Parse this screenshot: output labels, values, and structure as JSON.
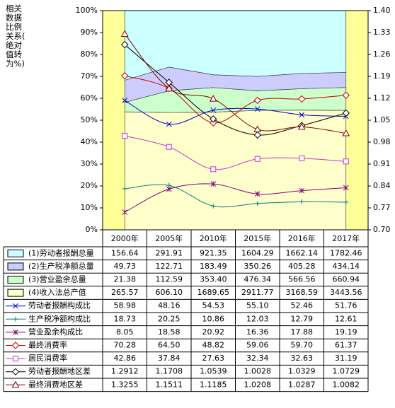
{
  "chart_data": {
    "type": "combo",
    "stacking": "percent",
    "y_label": "相关数据比例关系(绝对值转为%)",
    "categories": [
      "2000年",
      "2005年",
      "2010年",
      "2015年",
      "2016年",
      "2017年"
    ],
    "ylim": [
      0,
      100
    ],
    "yticks": [
      {
        "value": 0,
        "label": "0%"
      },
      {
        "value": 10,
        "label": "10%"
      },
      {
        "value": 20,
        "label": "20%"
      },
      {
        "value": 30,
        "label": "30%"
      },
      {
        "value": 40,
        "label": "40%"
      },
      {
        "value": 50,
        "label": "50%"
      },
      {
        "value": 60,
        "label": "60%"
      },
      {
        "value": 70,
        "label": "70%"
      },
      {
        "value": 80,
        "label": "80%"
      },
      {
        "value": 90,
        "label": "90%"
      },
      {
        "value": 100,
        "label": "100%"
      }
    ],
    "y2lim": [
      0.7,
      1.4
    ],
    "y2ticks": [
      {
        "value": 0.7,
        "label": "0.70"
      },
      0.77,
      0.84,
      0.91,
      0.98,
      1.05,
      1.12,
      1.19,
      1.26,
      1.33,
      {
        "value": 1.4,
        "label": "1.40"
      }
    ],
    "background": "#ffff99",
    "series": [
      {
        "name": "(1)劳动者报酬总量",
        "type": "area",
        "color": "#ccffff",
        "values": [
          156.64,
          291.91,
          921.35,
          1604.29,
          1662.14,
          1782.46
        ],
        "value_labels": [
          "156.64",
          "291.91",
          "921.35",
          "1604.29",
          "1662.14",
          "1782.46"
        ]
      },
      {
        "name": "(2)生产税净额总量",
        "type": "area",
        "color": "#ccccff",
        "values": [
          49.73,
          122.71,
          183.49,
          350.26,
          405.28,
          434.14
        ],
        "value_labels": [
          "49.73",
          "122.71",
          "183.49",
          "350.26",
          "405.28",
          "434.14"
        ]
      },
      {
        "name": "(3)营业盈余总量",
        "type": "area",
        "color": "#ccffcc",
        "values": [
          21.38,
          112.59,
          353.4,
          476.34,
          566.56,
          660.94
        ],
        "value_labels": [
          "21.38",
          "112.59",
          "353.40",
          "476.34",
          "566.56",
          "660.94"
        ]
      },
      {
        "name": "(4)收入法总产值",
        "type": "area",
        "color": "#ffffcc",
        "values": [
          265.57,
          606.1,
          1689.65,
          2911.77,
          3168.59,
          3443.56
        ],
        "value_labels": [
          "265.57",
          "606.10",
          "1689.65",
          "2911.77",
          "3168.59",
          "3443.56"
        ]
      },
      {
        "name": "劳动者报酬构成比",
        "type": "line",
        "marker": "x",
        "color": "#0000cc",
        "values": [
          58.98,
          48.16,
          54.53,
          55.1,
          52.46,
          51.76
        ],
        "value_labels": [
          "58.98",
          "48.16",
          "54.53",
          "55.10",
          "52.46",
          "51.76"
        ]
      },
      {
        "name": "生产税净额构成比",
        "type": "line",
        "marker": "plus",
        "color": "#008080",
        "values": [
          18.73,
          20.25,
          10.86,
          12.03,
          12.79,
          12.61
        ],
        "value_labels": [
          "18.73",
          "20.25",
          "10.86",
          "12.03",
          "12.79",
          "12.61"
        ]
      },
      {
        "name": "营业盈余构成比",
        "type": "line",
        "marker": "star",
        "color": "#800080",
        "values": [
          8.05,
          18.58,
          20.92,
          16.36,
          17.88,
          19.19
        ],
        "value_labels": [
          "8.05",
          "18.58",
          "20.92",
          "16.36",
          "17.88",
          "19.19"
        ]
      },
      {
        "name": "最终消费率",
        "type": "line",
        "marker": "diamond",
        "color": "#cc0000",
        "values": [
          70.28,
          64.5,
          48.82,
          59.06,
          59.7,
          61.37
        ],
        "value_labels": [
          "70.28",
          "64.50",
          "48.82",
          "59.06",
          "59.70",
          "61.37"
        ]
      },
      {
        "name": "居民消费率",
        "type": "line",
        "marker": "square",
        "color": "#cc33cc",
        "values": [
          42.86,
          37.84,
          27.63,
          32.34,
          32.63,
          31.19
        ],
        "value_labels": [
          "42.86",
          "37.84",
          "27.63",
          "32.34",
          "32.63",
          "31.19"
        ]
      },
      {
        "name": "劳动者报酬地区差",
        "type": "line",
        "marker": "diamond",
        "axis": "y2",
        "color": "#000000",
        "values": [
          1.2912,
          1.1708,
          1.0539,
          1.0028,
          1.0329,
          1.0729
        ],
        "value_labels": [
          "1.2912",
          "1.1708",
          "1.0539",
          "1.0028",
          "1.0329",
          "1.0729"
        ]
      },
      {
        "name": "最终消费地区差",
        "type": "line",
        "marker": "triangle",
        "axis": "y2",
        "color": "#800000",
        "values": [
          1.3255,
          1.1511,
          1.1185,
          1.0208,
          1.0287,
          1.0082
        ],
        "value_labels": [
          "1.3255",
          "1.1511",
          "1.1185",
          "1.0208",
          "1.0287",
          "1.0082"
        ]
      }
    ]
  }
}
